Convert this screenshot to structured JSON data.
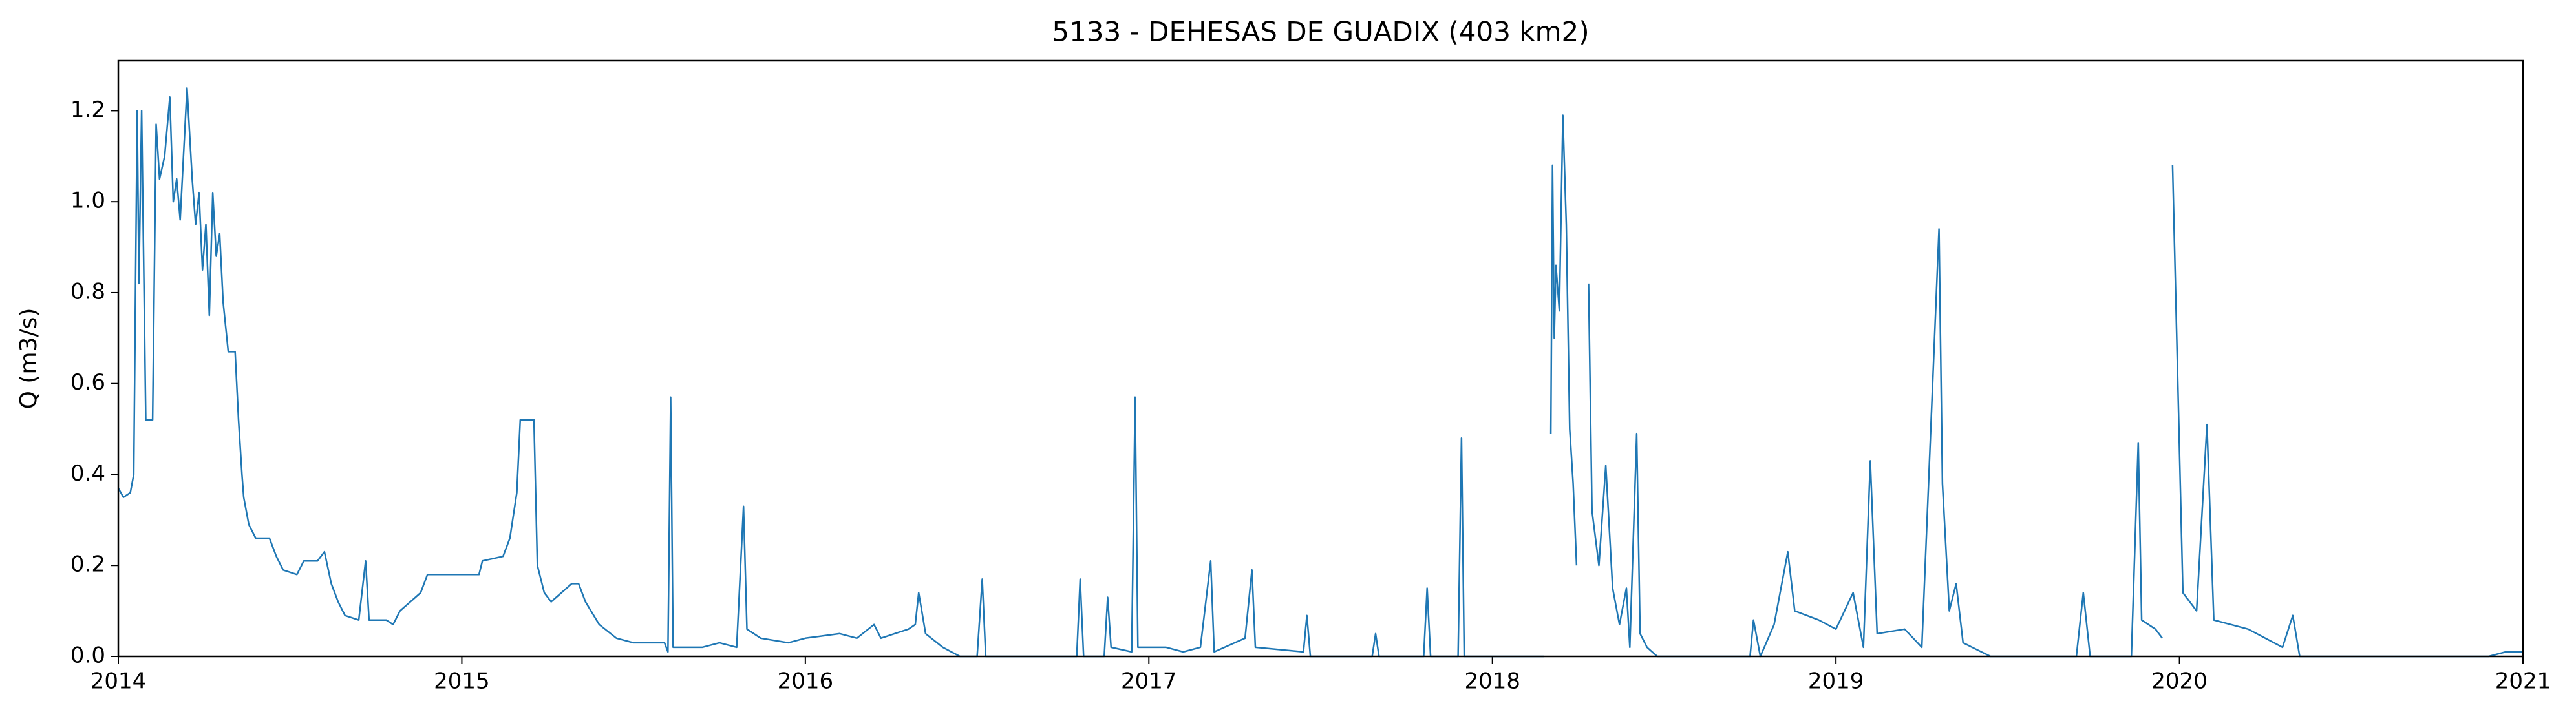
{
  "chart_data": {
    "type": "line",
    "title": "5133 - DEHESAS DE GUADIX (403 km2)",
    "ylabel": "Q (m3/s)",
    "color": "#1f77b4",
    "xlim": [
      2014,
      2021
    ],
    "xticks": [
      2014,
      2015,
      2016,
      2017,
      2018,
      2019,
      2020,
      2021
    ],
    "ylim": [
      0,
      1.31
    ],
    "yticks": [
      {
        "value": 0,
        "label": "0.0"
      },
      0.2,
      0.4,
      0.6,
      0.8,
      {
        "value": 1,
        "label": "1.0"
      },
      1.2
    ],
    "x": [
      2014.0,
      2014.015,
      2014.035,
      2014.045,
      2014.055,
      2014.06,
      2014.068,
      2014.08,
      2014.1,
      2014.11,
      2014.12,
      2014.135,
      2014.15,
      2014.16,
      2014.17,
      2014.18,
      2014.2,
      2014.215,
      2014.225,
      2014.235,
      2014.245,
      2014.255,
      2014.265,
      2014.275,
      2014.285,
      2014.295,
      2014.305,
      2014.32,
      2014.34,
      2014.35,
      2014.36,
      2014.365,
      2014.38,
      2014.4,
      2014.44,
      2014.46,
      2014.48,
      2014.52,
      2014.54,
      2014.58,
      2014.6,
      2014.62,
      2014.64,
      2014.66,
      2014.7,
      2014.72,
      2014.73,
      2014.78,
      2014.8,
      2014.82,
      2014.88,
      2014.9,
      2014.95,
      2015.05,
      2015.06,
      2015.12,
      2015.14,
      2015.16,
      2015.17,
      2015.21,
      2015.22,
      2015.24,
      2015.26,
      2015.29,
      2015.32,
      2015.34,
      2015.36,
      2015.4,
      2015.45,
      2015.5,
      2015.59,
      2015.6,
      2015.608,
      2015.615,
      2015.7,
      2015.75,
      2015.8,
      2015.82,
      2015.83,
      2015.87,
      2015.95,
      2016.0,
      2016.1,
      2016.15,
      2016.2,
      2016.22,
      2016.3,
      2016.32,
      2016.33,
      2016.35,
      2016.4,
      2016.45,
      2016.5,
      2016.515,
      2016.525,
      2016.79,
      2016.8,
      2016.81,
      2016.87,
      2016.88,
      2016.89,
      2016.95,
      2016.96,
      2016.968,
      2017.05,
      2017.1,
      2017.15,
      2017.18,
      2017.19,
      2017.28,
      2017.3,
      2017.31,
      2017.45,
      2017.46,
      2017.47,
      2017.65,
      2017.66,
      2017.67,
      2017.8,
      2017.81,
      2017.82,
      2017.9,
      2017.91,
      2017.918,
      2018.15,
      2018.16,
      2018.17,
      2018.175,
      2018.18,
      2018.185,
      2018.195,
      2018.205,
      2018.215,
      2018.225,
      2018.235,
      2018.245,
      2018.26,
      2018.28,
      2018.29,
      2018.31,
      2018.33,
      2018.35,
      2018.37,
      2018.39,
      2018.4,
      2018.42,
      2018.43,
      2018.45,
      2018.48,
      2018.75,
      2018.76,
      2018.78,
      2018.82,
      2018.86,
      2018.88,
      2018.95,
      2019.0,
      2019.05,
      2019.08,
      2019.1,
      2019.12,
      2019.2,
      2019.25,
      2019.3,
      2019.31,
      2019.33,
      2019.35,
      2019.37,
      2019.45,
      2019.7,
      2019.72,
      2019.74,
      2019.86,
      2019.88,
      2019.89,
      2019.93,
      2019.95,
      2019.965,
      2019.98,
      2020.01,
      2020.05,
      2020.08,
      2020.1,
      2020.2,
      2020.3,
      2020.33,
      2020.35,
      2020.4,
      2020.9,
      2020.95,
      2021.0
    ],
    "values": [
      0.37,
      0.35,
      0.36,
      0.4,
      1.2,
      0.82,
      1.2,
      0.52,
      0.52,
      1.17,
      1.05,
      1.1,
      1.23,
      1.0,
      1.05,
      0.96,
      1.25,
      1.05,
      0.95,
      1.02,
      0.85,
      0.95,
      0.75,
      1.02,
      0.88,
      0.93,
      0.78,
      0.67,
      0.67,
      0.52,
      0.4,
      0.35,
      0.29,
      0.26,
      0.26,
      0.22,
      0.19,
      0.18,
      0.21,
      0.21,
      0.23,
      0.16,
      0.12,
      0.09,
      0.08,
      0.21,
      0.08,
      0.08,
      0.07,
      0.1,
      0.14,
      0.18,
      0.18,
      0.18,
      0.21,
      0.22,
      0.26,
      0.36,
      0.52,
      0.52,
      0.2,
      0.14,
      0.12,
      0.14,
      0.16,
      0.16,
      0.12,
      0.07,
      0.04,
      0.03,
      0.03,
      0.01,
      0.57,
      0.02,
      0.02,
      0.03,
      0.02,
      0.33,
      0.06,
      0.04,
      0.03,
      0.04,
      0.05,
      0.04,
      0.07,
      0.04,
      0.06,
      0.07,
      0.14,
      0.05,
      0.02,
      0.0,
      0.0,
      0.17,
      0.0,
      0.0,
      0.17,
      0.0,
      0.0,
      0.13,
      0.02,
      0.01,
      0.57,
      0.02,
      0.02,
      0.01,
      0.02,
      0.21,
      0.01,
      0.04,
      0.19,
      0.02,
      0.01,
      0.09,
      0.0,
      0.0,
      0.05,
      0.0,
      0.0,
      0.15,
      0.0,
      0.0,
      0.48,
      0.0,
      0.0,
      null,
      0.49,
      1.08,
      0.7,
      0.86,
      0.76,
      1.19,
      0.95,
      0.5,
      0.38,
      0.2,
      null,
      0.82,
      0.32,
      0.2,
      0.42,
      0.15,
      0.07,
      0.15,
      0.02,
      0.49,
      0.05,
      0.02,
      0.0,
      0.0,
      0.08,
      0.0,
      0.07,
      0.23,
      0.1,
      0.08,
      0.06,
      0.14,
      0.02,
      0.43,
      0.05,
      0.06,
      0.02,
      0.94,
      0.38,
      0.1,
      0.16,
      0.03,
      0.0,
      0.0,
      0.14,
      0.0,
      0.0,
      0.47,
      0.08,
      0.06,
      0.04,
      null,
      1.08,
      0.14,
      0.1,
      0.51,
      0.08,
      0.06,
      0.02,
      0.09,
      0.0,
      0.0,
      0.0,
      0.01,
      0.01
    ]
  }
}
